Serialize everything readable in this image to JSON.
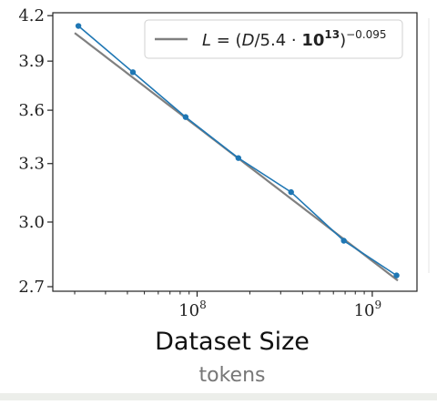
{
  "chart_data": {
    "type": "line",
    "x_scale": "log",
    "y_scale": "log",
    "xlim": [
      15000000,
      1800000000
    ],
    "ylim": [
      2.68,
      4.22
    ],
    "yticks": [
      2.7,
      3.0,
      3.3,
      3.6,
      3.9,
      4.2
    ],
    "ytick_labels": [
      "2.7",
      "3.0",
      "3.3",
      "3.6",
      "3.9",
      "4.2"
    ],
    "xticks": [
      100000000,
      1000000000
    ],
    "xtick_labels": [
      {
        "base": "10",
        "exp": "8"
      },
      {
        "base": "10",
        "exp": "9"
      }
    ],
    "xlabel": "Dataset Size",
    "xlabel_sub": "tokens",
    "ylabel": "",
    "grid": false,
    "legend_position": "top-right",
    "series": [
      {
        "kind": "measured",
        "color": "#1f77b4",
        "x": [
          21000000,
          43000000,
          86000000,
          172000000,
          344000000,
          688000000,
          1376000000
        ],
        "y": [
          4.13,
          3.83,
          3.56,
          3.33,
          3.15,
          2.91,
          2.75
        ]
      },
      {
        "kind": "fit",
        "color": "#808080",
        "legend_label": {
          "lhs": "L",
          "eq": " = (",
          "D": "D",
          "mid": "/5.4 · ",
          "base": "10",
          "exp13": "13",
          "close": ")",
          "exp": "−0.095"
        },
        "x_range": [
          20000000,
          1400000000
        ],
        "coef": 54000000000000,
        "exponent": -0.095
      }
    ]
  }
}
